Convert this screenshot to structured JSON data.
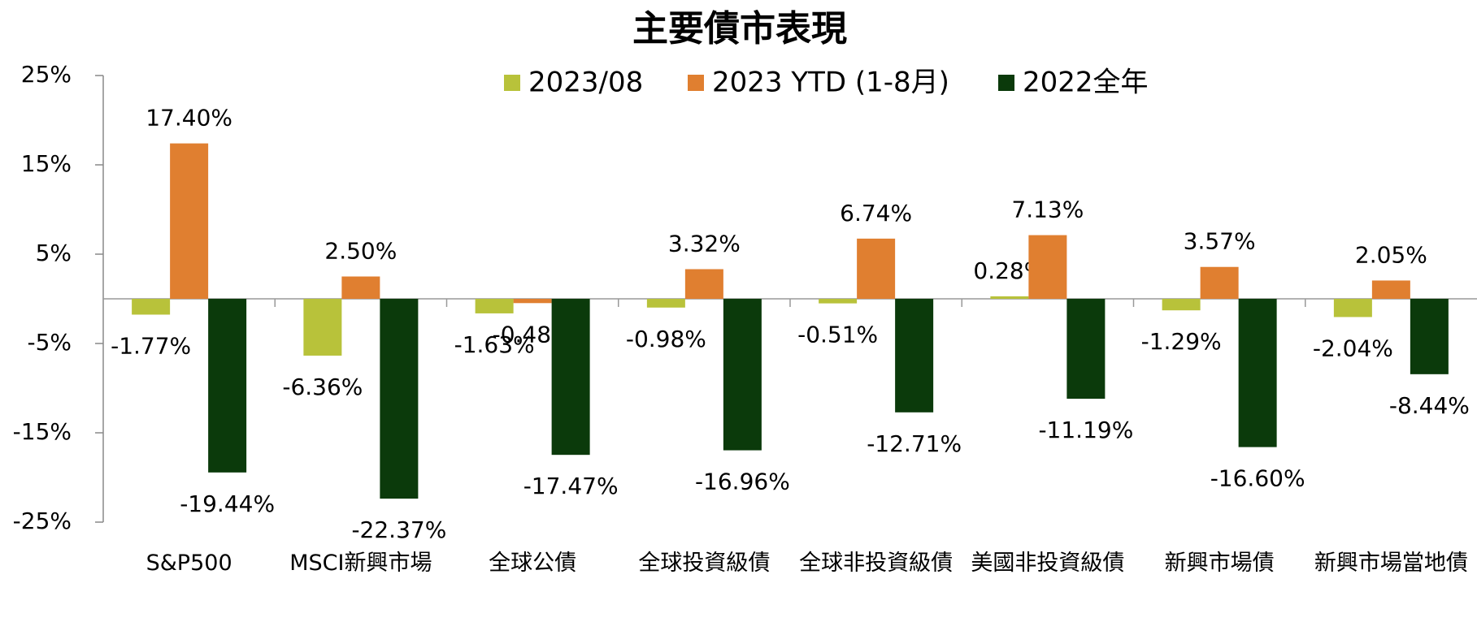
{
  "chart_data": {
    "type": "bar",
    "title": "主要債市表現",
    "categories": [
      "S&P500",
      "MSCI新興市場",
      "全球公債",
      "全球投資級債",
      "全球非投資級債",
      "美國非投資級債",
      "新興市場債",
      "新興市場當地債"
    ],
    "series": [
      {
        "name": "2023/08",
        "color": "#b8c23a",
        "values": [
          -1.77,
          -6.36,
          -1.63,
          -0.98,
          -0.51,
          0.28,
          -1.29,
          -2.04
        ],
        "value_labels": [
          "-1.77%",
          "-6.36%",
          "-1.63%",
          "-0.98%",
          "-0.51%",
          "0.28%",
          "-1.29%",
          "-2.04%"
        ]
      },
      {
        "name": "2023 YTD (1-8月)",
        "color": "#e07f30",
        "values": [
          17.4,
          2.5,
          -0.48,
          3.32,
          6.74,
          7.13,
          3.57,
          2.05
        ],
        "value_labels": [
          "17.40%",
          "2.50%",
          "-0.48%",
          "3.32%",
          "6.74%",
          "7.13%",
          "3.57%",
          "2.05%"
        ]
      },
      {
        "name": "2022全年",
        "color": "#0b3a0b",
        "values": [
          -19.44,
          -22.37,
          -17.47,
          -16.96,
          -12.71,
          -11.19,
          -16.6,
          -8.44
        ],
        "value_labels": [
          "-19.44%",
          "-22.37%",
          "-17.47%",
          "-16.96%",
          "-12.71%",
          "-11.19%",
          "-16.60%",
          "-8.44%"
        ]
      }
    ],
    "ylim": [
      -25,
      25
    ],
    "yticks": [
      {
        "value": -25,
        "label": "-25%"
      },
      {
        "value": -15,
        "label": "-15%"
      },
      {
        "value": -5,
        "label": "-5%"
      },
      {
        "value": 5,
        "label": "5%"
      },
      {
        "value": 15,
        "label": "15%"
      },
      {
        "value": 25,
        "label": "25%"
      }
    ],
    "grid": false
  }
}
